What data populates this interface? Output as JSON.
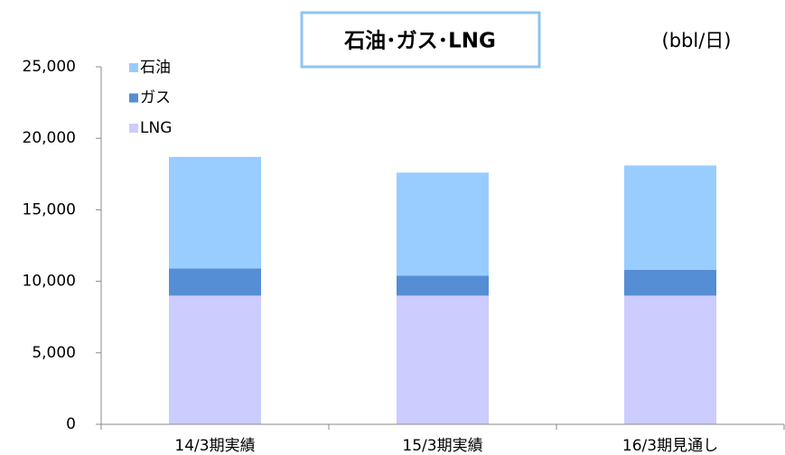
{
  "chart_data": {
    "type": "stacked_bar",
    "title": "石油･ガス･LNG",
    "unit_label": "(bbl/日)",
    "categories": [
      "14/3期実績",
      "15/3期実績",
      "16/3期見通し"
    ],
    "series": [
      {
        "name": "LNG",
        "color": "#ccccff",
        "values": [
          9000,
          9000,
          9000
        ]
      },
      {
        "name": "ガス",
        "color": "#558ed5",
        "values": [
          1900,
          1400,
          1800
        ]
      },
      {
        "name": "石油",
        "color": "#99ccff",
        "values": [
          7800,
          7200,
          7300
        ]
      }
    ],
    "ylim": [
      0,
      25000
    ],
    "yticks": [
      0,
      {
        "value": 5000,
        "label": "5,000"
      },
      {
        "value": 10000,
        "label": "10,000"
      },
      {
        "value": 15000,
        "label": "15,000"
      },
      {
        "value": 20000,
        "label": "20,000"
      },
      {
        "value": 25000,
        "label": "25,000"
      }
    ],
    "legend": "top-left",
    "grid": false
  }
}
